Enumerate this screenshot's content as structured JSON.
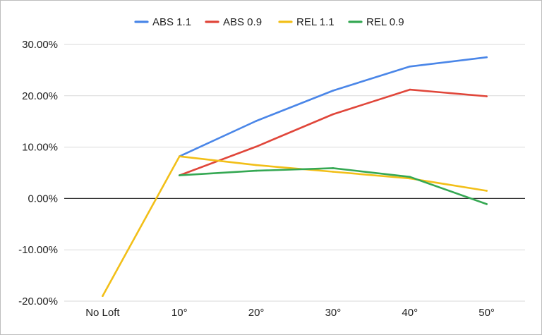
{
  "chart_data": {
    "type": "line",
    "categories": [
      "No Loft",
      "10°",
      "20°",
      "30°",
      "40°",
      "50°"
    ],
    "y_ticks": [
      "30.00%",
      "20.00%",
      "10.00%",
      "0.00%",
      "-10.00%",
      "-20.00%"
    ],
    "y_tick_values": [
      30,
      20,
      10,
      0,
      -10,
      -20
    ],
    "ylim": [
      -20,
      30
    ],
    "grid": true,
    "legend_position": "top",
    "series": [
      {
        "name": "ABS 1.1",
        "color": "#4a86e8",
        "values": [
          null,
          8.2,
          15.1,
          21.0,
          25.7,
          27.5
        ]
      },
      {
        "name": "ABS 0.9",
        "color": "#e0463a",
        "values": [
          null,
          4.5,
          10.1,
          16.4,
          21.2,
          19.9
        ]
      },
      {
        "name": "REL 1.1",
        "color": "#f2bf18",
        "values": [
          -19.0,
          8.2,
          6.5,
          5.2,
          3.9,
          1.5
        ]
      },
      {
        "name": "REL 0.9",
        "color": "#35a853",
        "values": [
          null,
          4.5,
          5.4,
          5.9,
          4.2,
          -1.1
        ]
      }
    ]
  }
}
